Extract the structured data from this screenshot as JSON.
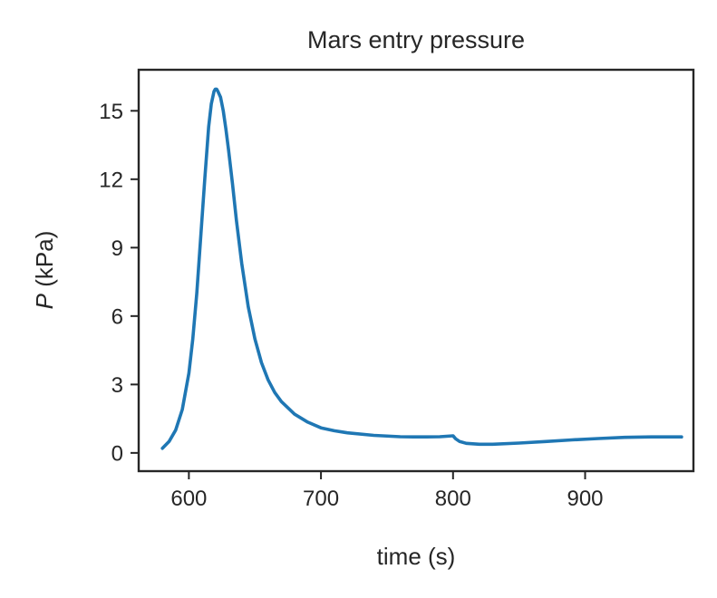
{
  "chart_data": {
    "type": "line",
    "title": "Mars entry pressure",
    "xlabel": "time (s)",
    "ylabel_symbol": "P",
    "ylabel_unit": "(kPa)",
    "xlim": [
      562,
      982
    ],
    "ylim": [
      -0.8,
      16.8
    ],
    "xticks": [
      600,
      700,
      800,
      900
    ],
    "yticks": [
      0,
      3,
      6,
      9,
      12,
      15
    ],
    "grid": false,
    "line_color": "#1f77b4",
    "axis_color": "#262626",
    "series": [
      {
        "x": [
          580,
          585,
          590,
          595,
          600,
          603,
          606,
          609,
          612,
          615,
          617,
          619,
          620,
          621,
          622,
          624,
          626,
          628,
          630,
          633,
          636,
          640,
          645,
          650,
          655,
          660,
          665,
          670,
          680,
          690,
          700,
          710,
          720,
          740,
          760,
          770,
          780,
          790,
          800,
          802,
          805,
          810,
          820,
          830,
          850,
          870,
          890,
          910,
          930,
          950,
          973
        ],
        "y": [
          0.2,
          0.5,
          1.0,
          1.9,
          3.5,
          5.0,
          7.0,
          9.5,
          12.0,
          14.3,
          15.3,
          15.85,
          15.95,
          15.95,
          15.85,
          15.6,
          15.0,
          14.2,
          13.3,
          11.8,
          10.2,
          8.3,
          6.4,
          5.0,
          3.95,
          3.2,
          2.65,
          2.25,
          1.7,
          1.35,
          1.1,
          0.97,
          0.88,
          0.77,
          0.71,
          0.7,
          0.7,
          0.71,
          0.75,
          0.62,
          0.5,
          0.42,
          0.38,
          0.38,
          0.43,
          0.5,
          0.57,
          0.63,
          0.68,
          0.7,
          0.7
        ]
      }
    ]
  }
}
